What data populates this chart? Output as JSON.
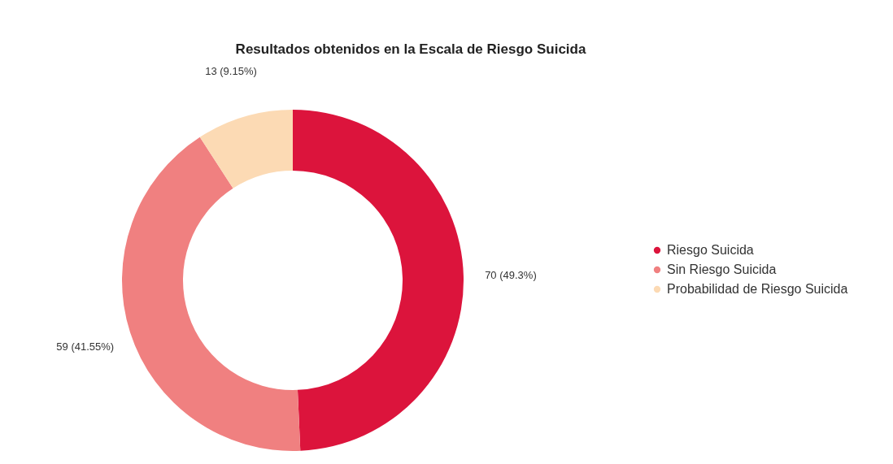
{
  "chart_data": {
    "type": "donut",
    "title": "Resultados obtenidos en la Escala de Riesgo Suicida",
    "categories": [
      "Riesgo Suicida",
      "Sin Riesgo Suicida",
      "Probabilidad de Riesgo Suicida"
    ],
    "values": [
      70,
      59,
      13
    ],
    "colors": [
      "#dc143c",
      "#f08080",
      "#fcdab4"
    ],
    "value_labels": [
      "70 (49.3%)",
      "59 (41.55%)",
      "13 (9.15%)"
    ],
    "legend": "right"
  }
}
